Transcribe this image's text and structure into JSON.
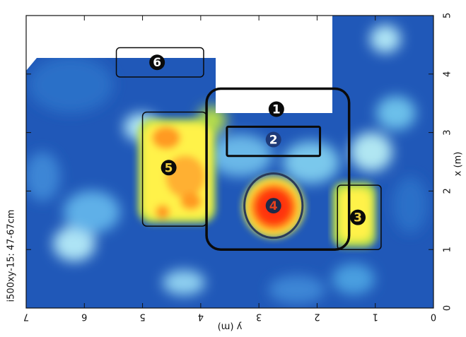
{
  "chart_data": {
    "type": "heatmap",
    "x_axis": {
      "label": "y (m)",
      "range": [
        7,
        0
      ],
      "ticks": [
        "7",
        "6",
        "5",
        "4",
        "3",
        "2",
        "1",
        "0"
      ],
      "tick_values": [
        7,
        6,
        5,
        4,
        3,
        2,
        1,
        0
      ],
      "orientation": "reversed, labels drawn upside-down"
    },
    "y_axis": {
      "label": "x (m)",
      "range": [
        0,
        5
      ],
      "ticks": [
        "0",
        "1",
        "2",
        "3",
        "4",
        "5"
      ],
      "tick_values": [
        0,
        1,
        2,
        3,
        4,
        5
      ],
      "position": "right",
      "orientation": "labels rotated"
    },
    "side_label": "i500xy-15: 47-67cm",
    "colormap": [
      "#1e50b4",
      "#4a9fe0",
      "#aee4f5",
      "#b8e04a",
      "#fff24a",
      "#ff9a20",
      "#ff3010"
    ],
    "no_data_color": "#ffffff",
    "no_data_regions": [
      {
        "name": "top-left-corner",
        "y_range": [
          7,
          6.1
        ],
        "x_range": [
          4.25,
          5
        ]
      },
      {
        "name": "top-center",
        "y_range": [
          6.1,
          1.7
        ],
        "x_range": [
          4.25,
          5
        ]
      },
      {
        "name": "top-center-notch",
        "y_range": [
          3.5,
          1.7
        ],
        "x_range": [
          3.3,
          4.25
        ]
      }
    ],
    "hotspots": [
      {
        "id": 4,
        "y": 2.75,
        "x": 1.75,
        "peak": "red"
      },
      {
        "id": 5,
        "y": 4.55,
        "x": 2.45,
        "peak": "orange"
      },
      {
        "id": 3,
        "y": 1.3,
        "x": 1.55,
        "peak": "yellow"
      }
    ],
    "annotations": [
      {
        "id": 1,
        "label": "❶",
        "shape": "rounded-rect",
        "y_range": [
          3.9,
          1.45
        ],
        "x_range": [
          1.0,
          3.75
        ],
        "label_at": {
          "y": 2.7,
          "x": 3.4
        }
      },
      {
        "id": 2,
        "label": "❷",
        "shape": "rect",
        "y_range": [
          3.55,
          1.95
        ],
        "x_range": [
          2.6,
          3.1
        ],
        "label_at": {
          "y": 2.75,
          "x": 2.88
        }
      },
      {
        "id": 3,
        "label": "❸",
        "shape": "rect",
        "y_range": [
          1.65,
          0.9
        ],
        "x_range": [
          1.0,
          2.1
        ],
        "label_at": {
          "y": 1.3,
          "x": 1.55
        }
      },
      {
        "id": 4,
        "label": "❹",
        "shape": "circle",
        "center": {
          "y": 2.75,
          "x": 1.75
        },
        "radius_y": 0.5,
        "radius_x": 0.55,
        "label_at": {
          "y": 2.75,
          "x": 1.75
        }
      },
      {
        "id": 5,
        "label": "❺",
        "shape": "rect",
        "y_range": [
          5.0,
          3.9
        ],
        "x_range": [
          1.4,
          3.35
        ],
        "label_at": {
          "y": 4.55,
          "x": 2.4
        }
      },
      {
        "id": 6,
        "label": "❻",
        "shape": "rect",
        "y_range": [
          5.45,
          3.95
        ],
        "x_range": [
          3.95,
          4.45
        ],
        "label_at": {
          "y": 4.75,
          "x": 4.2
        }
      }
    ]
  }
}
